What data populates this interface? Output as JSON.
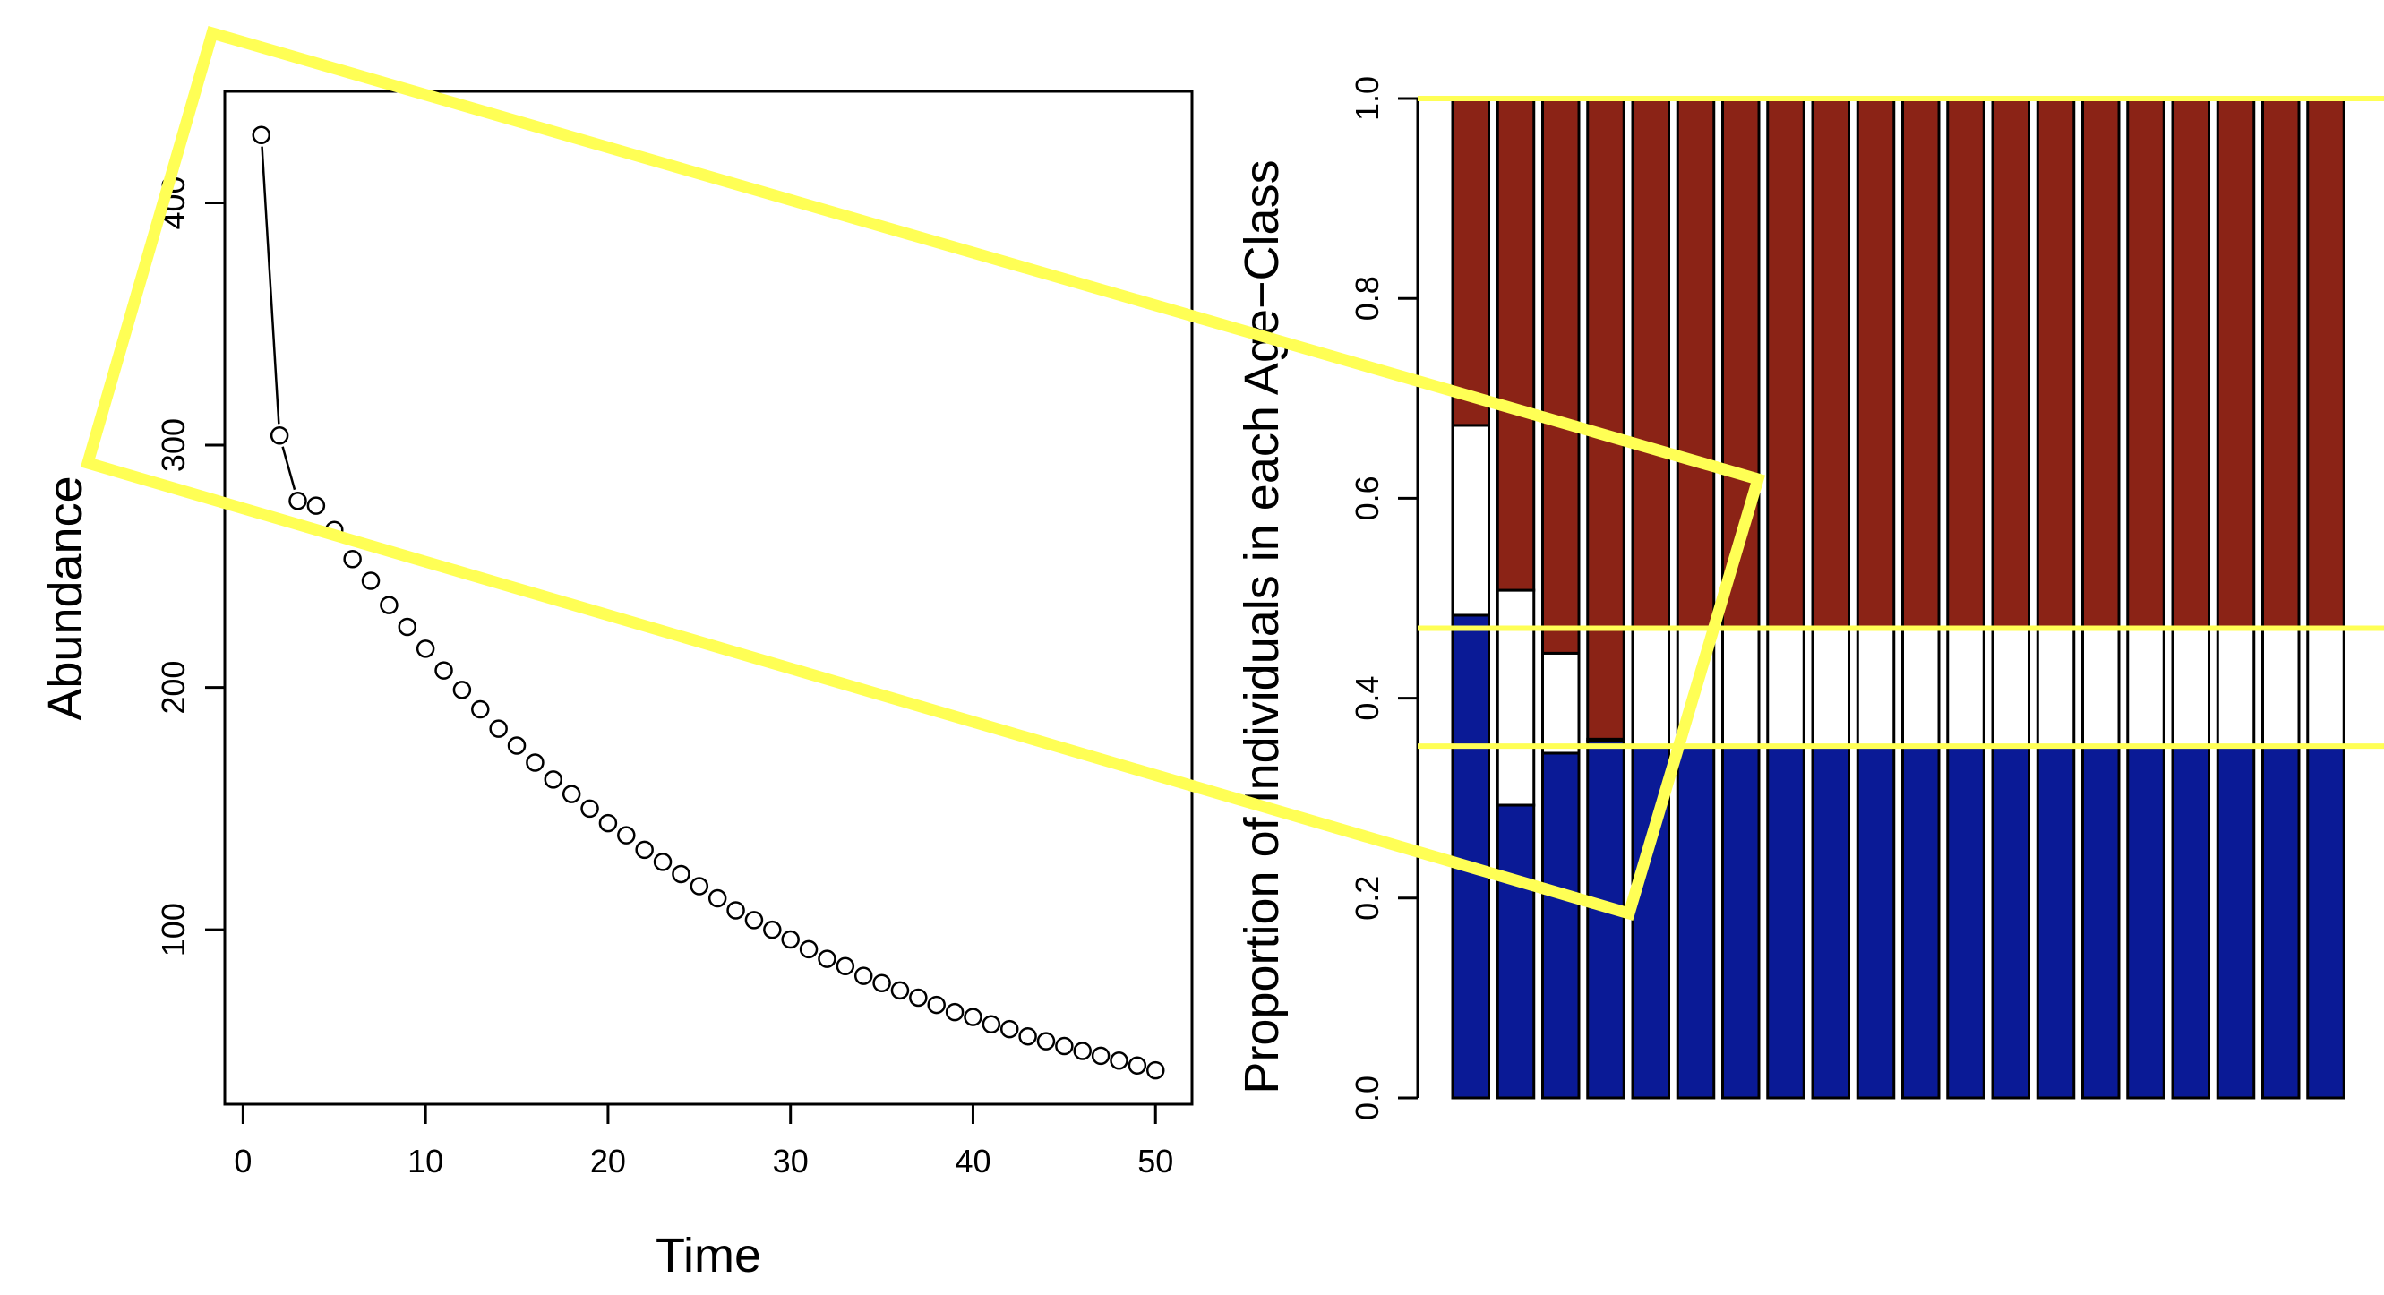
{
  "chart_data": [
    {
      "type": "scatter",
      "xlabel": "Time",
      "ylabel": "Abundance",
      "xlim": [
        -1,
        52
      ],
      "ylim": [
        28,
        446
      ],
      "xticks": [
        0,
        10,
        20,
        30,
        40,
        50
      ],
      "yticks": [
        100,
        200,
        300,
        400
      ],
      "tick_labels_x": [
        "0",
        "10",
        "20",
        "30",
        "40",
        "50"
      ],
      "tick_labels_y": [
        "100",
        "200",
        "300",
        "400"
      ],
      "x": [
        1,
        2,
        3,
        4,
        5,
        6,
        7,
        8,
        9,
        10,
        11,
        12,
        13,
        14,
        15,
        16,
        17,
        18,
        19,
        20,
        21,
        22,
        23,
        24,
        25,
        26,
        27,
        28,
        29,
        30,
        31,
        32,
        33,
        34,
        35,
        36,
        37,
        38,
        39,
        40,
        41,
        42,
        43,
        44,
        45,
        46,
        47,
        48,
        49,
        50
      ],
      "y": [
        428,
        304,
        277,
        275,
        265,
        253,
        244,
        234,
        225,
        216,
        207,
        199,
        191,
        183,
        176,
        169,
        162,
        156,
        150,
        144,
        139,
        133,
        128,
        123,
        118,
        113,
        108,
        104,
        100,
        96,
        92,
        88,
        85,
        81,
        78,
        75,
        72,
        69,
        66,
        64,
        61,
        59,
        56,
        54,
        52,
        50,
        48,
        46,
        44,
        42
      ],
      "connected_first_points": 3,
      "grid": false
    },
    {
      "type": "bar",
      "stacked": true,
      "ylabel": "Proportion of Individuals in each Age−Class",
      "ylim": [
        0,
        1
      ],
      "yticks": [
        0.0,
        0.2,
        0.4,
        0.6,
        0.8,
        1.0
      ],
      "tick_labels_y": [
        "0.0",
        "0.2",
        "0.4",
        "0.6",
        "0.8",
        "1.0"
      ],
      "series": [
        {
          "color": "#0a1a96",
          "values": [
            0.483,
            0.293,
            0.345,
            0.357,
            0.352,
            0.352,
            0.352,
            0.352,
            0.352,
            0.352,
            0.352,
            0.352,
            0.352,
            0.352,
            0.352,
            0.352,
            0.352,
            0.352,
            0.352,
            0.352
          ]
        },
        {
          "color": "#ffffff",
          "values": [
            0.19,
            0.215,
            0.1,
            0.002,
            0.117,
            0.117,
            0.117,
            0.117,
            0.117,
            0.117,
            0.117,
            0.117,
            0.117,
            0.117,
            0.117,
            0.117,
            0.117,
            0.117,
            0.117,
            0.117
          ]
        },
        {
          "color": "#8b2316",
          "values": [
            0.327,
            0.492,
            0.555,
            0.641,
            0.531,
            0.531,
            0.531,
            0.531,
            0.531,
            0.531,
            0.531,
            0.531,
            0.531,
            0.531,
            0.531,
            0.531,
            0.531,
            0.531,
            0.531,
            0.531
          ]
        }
      ],
      "reference_lines": [
        1.0,
        0.47,
        0.352
      ],
      "reference_line_color": "#ffff55",
      "grid": false
    }
  ],
  "annotation": {
    "shape": "tilted-rectangle",
    "color": "#ffff55"
  }
}
